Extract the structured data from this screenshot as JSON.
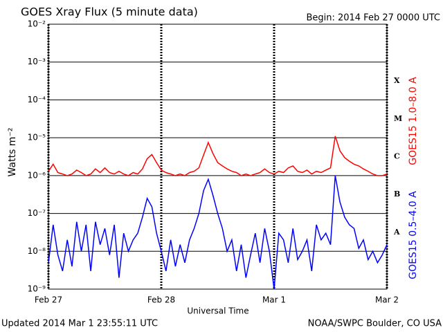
{
  "chart_data": {
    "type": "line",
    "title": "GOES Xray Flux (5 minute data)",
    "subtitle": "Begin:  2014 Feb 27 0000 UTC",
    "xlabel": "Universal Time",
    "ylabel": "Watts m⁻²",
    "footer_left": "Updated 2014 Mar  1 23:55:11 UTC",
    "footer_right": "NOAA/SWPC Boulder, CO USA",
    "flare_classes": [
      "A",
      "B",
      "C",
      "M",
      "X"
    ],
    "log_scale": true,
    "grid": true,
    "xlim": [
      0,
      72
    ],
    "xticks": [
      {
        "value": 0,
        "label": "Feb 27"
      },
      {
        "value": 24,
        "label": "Feb 28"
      },
      {
        "value": 48,
        "label": "Mar 1"
      },
      {
        "value": 72,
        "label": "Mar 2"
      }
    ],
    "ylim": [
      1e-09,
      0.01
    ],
    "yticks": [
      {
        "value": 1e-09,
        "label": "10⁻⁹"
      },
      {
        "value": 1e-08,
        "label": "10⁻⁸"
      },
      {
        "value": 1e-07,
        "label": "10⁻⁷"
      },
      {
        "value": 1e-06,
        "label": "10⁻⁶"
      },
      {
        "value": 1e-05,
        "label": "10⁻⁵"
      },
      {
        "value": 0.0001,
        "label": "10⁻⁴"
      },
      {
        "value": 0.001,
        "label": "10⁻³"
      },
      {
        "value": 0.01,
        "label": "10⁻²"
      }
    ],
    "x": [
      0,
      1,
      2,
      3,
      4,
      5,
      6,
      7,
      8,
      9,
      10,
      11,
      12,
      13,
      14,
      15,
      16,
      17,
      18,
      19,
      20,
      21,
      22,
      23,
      24,
      25,
      26,
      27,
      28,
      29,
      30,
      31,
      32,
      33,
      34,
      35,
      36,
      37,
      38,
      39,
      40,
      41,
      42,
      43,
      44,
      45,
      46,
      47,
      48,
      49,
      50,
      51,
      52,
      53,
      54,
      55,
      56,
      57,
      58,
      59,
      60,
      61,
      62,
      63,
      64,
      65,
      66,
      67,
      68,
      69,
      70,
      71,
      72
    ],
    "series": [
      {
        "name": "GOES15 1.0–8.0 A",
        "color": "#ff0000",
        "values": [
          1.3e-06,
          2e-06,
          1.2e-06,
          1.1e-06,
          1e-06,
          1.1e-06,
          1.4e-06,
          1.2e-06,
          1e-06,
          1.1e-06,
          1.5e-06,
          1.2e-06,
          1.6e-06,
          1.2e-06,
          1.1e-06,
          1.3e-06,
          1.1e-06,
          1e-06,
          1.2e-06,
          1.1e-06,
          1.5e-06,
          2.8e-06,
          3.6e-06,
          2.2e-06,
          1.4e-06,
          1.2e-06,
          1.1e-06,
          1e-06,
          1.1e-06,
          1e-06,
          1.2e-06,
          1.3e-06,
          1.6e-06,
          3.5e-06,
          7.5e-06,
          3.8e-06,
          2.2e-06,
          1.8e-06,
          1.5e-06,
          1.3e-06,
          1.2e-06,
          1e-06,
          1.1e-06,
          1e-06,
          1.1e-06,
          1.2e-06,
          1.5e-06,
          1.2e-06,
          1.1e-06,
          1.3e-06,
          1.2e-06,
          1.6e-06,
          1.8e-06,
          1.3e-06,
          1.2e-06,
          1.4e-06,
          1.1e-06,
          1.3e-06,
          1.2e-06,
          1.4e-06,
          1.6e-06,
          1.1e-05,
          4.5e-06,
          3e-06,
          2.4e-06,
          2e-06,
          1.8e-06,
          1.5e-06,
          1.3e-06,
          1.1e-06,
          1e-06,
          1e-06,
          1.1e-06
        ]
      },
      {
        "name": "GOES15 0.5–4.0 A",
        "color": "#0000ff",
        "values": [
          5e-09,
          5e-08,
          8e-09,
          3e-09,
          2e-08,
          4e-09,
          6e-08,
          1e-08,
          5e-08,
          3e-09,
          6e-08,
          1.5e-08,
          4e-08,
          8e-09,
          5e-08,
          2e-09,
          3e-08,
          1e-08,
          2e-08,
          3e-08,
          8e-08,
          2.5e-07,
          1.5e-07,
          3e-08,
          1e-08,
          3e-09,
          2e-08,
          4e-09,
          1.5e-08,
          5e-09,
          2e-08,
          4e-08,
          1e-07,
          4e-07,
          8e-07,
          3e-07,
          1e-07,
          4e-08,
          1e-08,
          2e-08,
          3e-09,
          1.5e-08,
          2e-09,
          8e-09,
          3e-08,
          5e-09,
          4e-08,
          1e-08,
          1e-09,
          3e-08,
          2e-08,
          5e-09,
          4e-08,
          6e-09,
          1e-08,
          2e-08,
          3e-09,
          5e-08,
          2e-08,
          3e-08,
          1.5e-08,
          1e-06,
          2e-07,
          8e-08,
          5e-08,
          4e-08,
          1.2e-08,
          2e-08,
          6e-09,
          1e-08,
          5e-09,
          8e-09,
          1.5e-08
        ]
      }
    ]
  }
}
